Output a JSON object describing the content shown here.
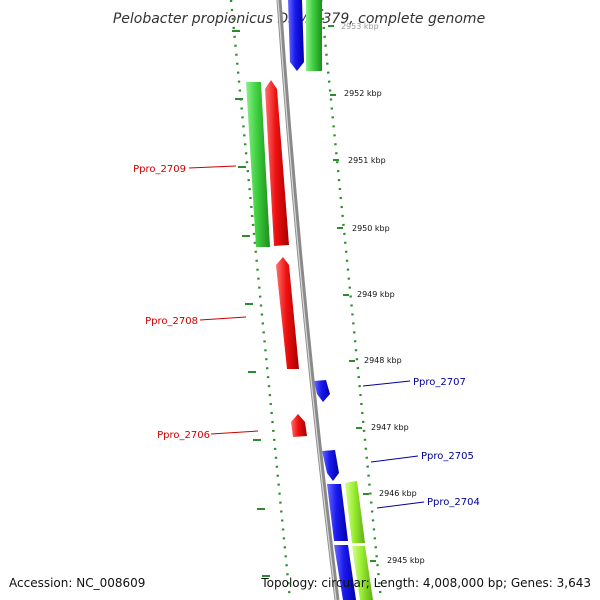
{
  "title": "Pelobacter propionicus DSM 2379, complete genome",
  "footer": {
    "accession": "Accession: NC_008609",
    "topology": "Topology: circular; Length: 4,008,000 bp; Genes: 3,643"
  },
  "colors": {
    "backbone": "#8a8a8a",
    "tick": "#2e8b2e",
    "cds_forward": "#1010e0",
    "cds_reverse": "#ee1111",
    "green_feature": "#3ecf3e",
    "lightgreen_feature": "#99ee33",
    "label_forward": "#00009c",
    "label_reverse": "#cc0000"
  },
  "kbp_labels": [
    "2953 kbp",
    "2952 kbp",
    "2951 kbp",
    "2950 kbp",
    "2949 kbp",
    "2948 kbp",
    "2947 kbp",
    "2946 kbp",
    "2945 kbp"
  ],
  "gene_labels": [
    {
      "text": "Ppro_2709",
      "strand": "reverse"
    },
    {
      "text": "Ppro_2708",
      "strand": "reverse"
    },
    {
      "text": "Ppro_2706",
      "strand": "reverse"
    },
    {
      "text": "Ppro_2707",
      "strand": "forward"
    },
    {
      "text": "Ppro_2705",
      "strand": "forward"
    },
    {
      "text": "Ppro_2704",
      "strand": "forward"
    }
  ]
}
